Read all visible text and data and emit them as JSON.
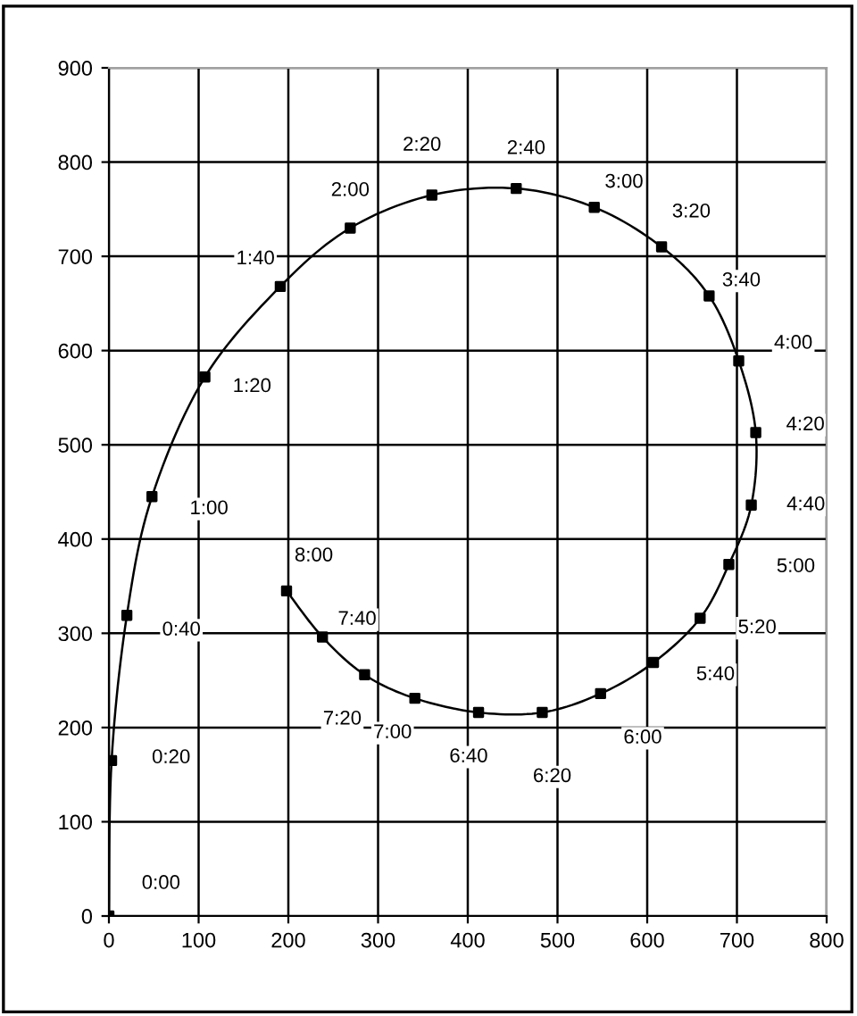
{
  "chart_data": {
    "type": "line",
    "x": [
      0,
      3,
      20,
      48,
      107,
      191,
      269,
      360,
      454,
      541,
      616,
      669,
      702,
      721,
      716,
      691,
      659,
      607,
      548,
      483,
      412,
      341,
      285,
      238,
      198
    ],
    "series": [
      {
        "color": "#000000",
        "values": [
          0,
          165,
          319,
          445,
          572,
          668,
          730,
          765,
          772,
          752,
          710,
          658,
          589,
          513,
          436,
          373,
          316,
          269,
          236,
          216,
          216,
          231,
          256,
          296,
          345
        ]
      }
    ],
    "annotations": [
      {
        "text": "0:00",
        "x": 0,
        "y": 0
      },
      {
        "text": "0:20",
        "x": 3,
        "y": 165
      },
      {
        "text": "0:40",
        "x": 20,
        "y": 319
      },
      {
        "text": "1:00",
        "x": 48,
        "y": 445
      },
      {
        "text": "1:20",
        "x": 107,
        "y": 572
      },
      {
        "text": "1:40",
        "x": 191,
        "y": 668
      },
      {
        "text": "2:00",
        "x": 269,
        "y": 730
      },
      {
        "text": "2:20",
        "x": 360,
        "y": 765
      },
      {
        "text": "2:40",
        "x": 454,
        "y": 772
      },
      {
        "text": "3:00",
        "x": 541,
        "y": 752
      },
      {
        "text": "3:20",
        "x": 616,
        "y": 710
      },
      {
        "text": "3:40",
        "x": 669,
        "y": 658
      },
      {
        "text": "4:00",
        "x": 702,
        "y": 589
      },
      {
        "text": "4:20",
        "x": 721,
        "y": 513
      },
      {
        "text": "4:40",
        "x": 716,
        "y": 436
      },
      {
        "text": "5:00",
        "x": 691,
        "y": 373
      },
      {
        "text": "5:20",
        "x": 659,
        "y": 316
      },
      {
        "text": "5:40",
        "x": 607,
        "y": 269
      },
      {
        "text": "6:00",
        "x": 548,
        "y": 236
      },
      {
        "text": "6:20",
        "x": 483,
        "y": 216
      },
      {
        "text": "6:40",
        "x": 412,
        "y": 216
      },
      {
        "text": "7:00",
        "x": 341,
        "y": 231
      },
      {
        "text": "7:20",
        "x": 285,
        "y": 256
      },
      {
        "text": "7:40",
        "x": 238,
        "y": 296
      },
      {
        "text": "8:00",
        "x": 198,
        "y": 345
      }
    ],
    "xlim": [
      0,
      800
    ],
    "xticks": [
      0,
      100,
      200,
      300,
      400,
      500,
      600,
      700,
      800
    ],
    "ylim": [
      0,
      900
    ],
    "yticks": [
      0,
      100,
      200,
      300,
      400,
      500,
      600,
      700,
      800,
      900
    ],
    "grid": true,
    "marker": "square",
    "line_style": "solid",
    "legend": false
  }
}
